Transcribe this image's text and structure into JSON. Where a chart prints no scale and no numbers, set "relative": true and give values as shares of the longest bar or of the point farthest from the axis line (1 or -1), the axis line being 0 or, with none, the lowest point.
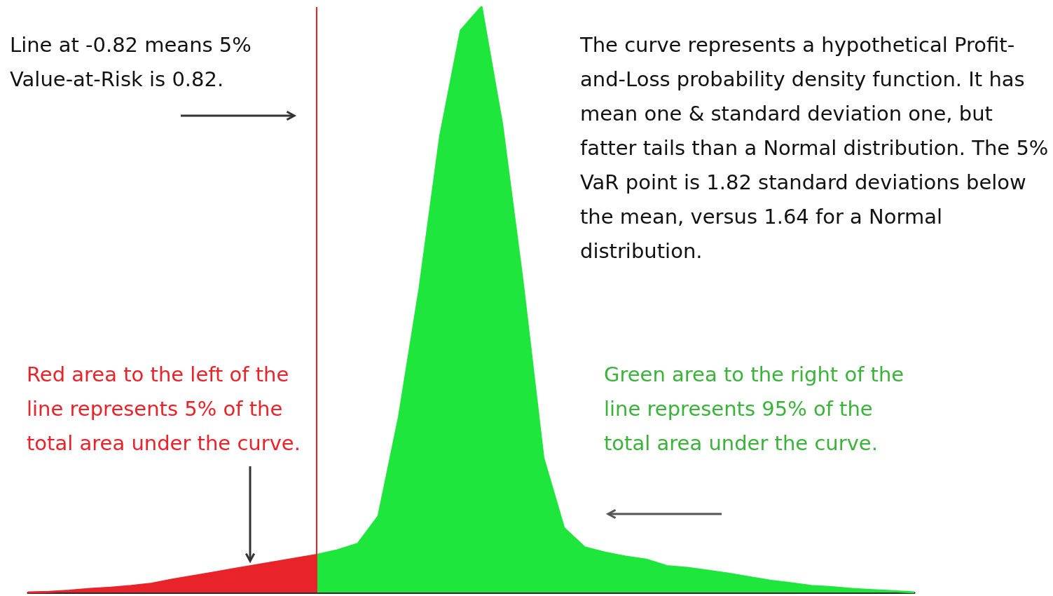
{
  "chart_data": {
    "type": "area",
    "relative": true,
    "tick_labels": false,
    "categories": [
      null,
      null,
      null,
      null,
      null,
      null,
      null,
      null,
      null,
      null,
      null,
      null,
      null,
      null,
      null,
      null,
      null,
      null,
      null,
      null,
      null,
      null,
      null,
      null,
      null,
      null,
      null,
      null,
      null,
      null,
      null,
      null,
      null,
      null,
      null,
      null,
      null,
      null,
      null,
      null,
      null,
      null,
      null,
      null
    ],
    "series": [
      {
        "color": "#e8232a",
        "values": [
          0,
          0.001,
          0.003,
          0.006,
          0.008,
          0.011,
          0.015,
          0.022,
          0.028,
          0.034,
          0.04,
          0.046,
          0.052,
          0.058,
          0.064,
          null,
          null,
          null,
          null,
          null,
          null,
          null,
          null,
          null,
          null,
          null,
          null,
          null,
          null,
          null,
          null,
          null,
          null,
          null,
          null,
          null,
          null,
          null,
          null,
          null,
          null,
          null,
          null,
          null
        ]
      },
      {
        "color": "#1ee63c",
        "values": [
          null,
          null,
          null,
          null,
          null,
          null,
          null,
          null,
          null,
          null,
          null,
          null,
          null,
          null,
          0.064,
          0.072,
          0.083,
          0.13,
          0.3,
          0.52,
          0.78,
          0.96,
          1,
          0.8,
          0.53,
          0.23,
          0.11,
          0.077,
          0.068,
          0.061,
          0.056,
          0.045,
          0.042,
          0.037,
          0.032,
          0.026,
          0.02,
          0.016,
          0.011,
          0.009,
          0.006,
          0.004,
          0.002,
          0
        ]
      }
    ],
    "annotations": [
      "Line at -0.82 means 5% Value-at-Risk is 0.82.",
      "The curve represents a hypothetical Profit-and-Loss probability density function. It has mean one & standard deviation one, but fatter tails than a Normal distribution. The 5% VaR point is 1.82 standard deviations below the mean, versus 1.64 for a Normal distribution.",
      "Red area to the left of the line represents 5% of the total area under the curve.",
      "Green area to the right of the line represents 95% of the total area under the curve."
    ]
  }
}
